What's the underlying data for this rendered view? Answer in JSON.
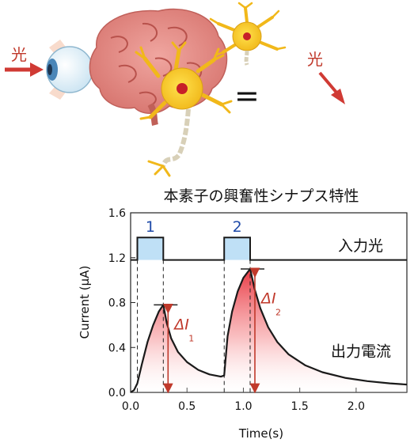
{
  "illustration": {
    "light_label_left": "光",
    "light_label_right": "光",
    "equals_sign": "=",
    "icons": [
      "light-arrow-icon",
      "eye-icon",
      "brain-icon",
      "neuron-icon"
    ]
  },
  "chart_data": {
    "type": "line",
    "title": "本素子の興奮性シナプス特性",
    "xlabel": "Time(s)",
    "ylabel": "Current (μA)",
    "xlim": [
      0,
      2.45
    ],
    "ylim": [
      0,
      1.6
    ],
    "xticks": [
      0.0,
      0.5,
      1.0,
      1.5,
      2.0
    ],
    "xtick_labels": [
      "0.0",
      "0.5",
      "1.0",
      "1.5",
      "2.0"
    ],
    "yticks": [
      0.0,
      0.4,
      0.8,
      1.2,
      1.6
    ],
    "ytick_labels": [
      "0.0",
      "0.4",
      "0.8",
      "1.2",
      "1.6"
    ],
    "grid": false,
    "pulse_labels": [
      "1",
      "2"
    ],
    "series": [
      {
        "name": "入力光",
        "x": [
          0,
          0.06,
          0.06,
          0.29,
          0.29,
          0.83,
          0.83,
          1.06,
          1.06,
          2.45
        ],
        "y": [
          1.18,
          1.18,
          1.38,
          1.38,
          1.18,
          1.18,
          1.38,
          1.38,
          1.18,
          1.18
        ]
      },
      {
        "name": "出力電流",
        "x": [
          0.0,
          0.03,
          0.06,
          0.1,
          0.15,
          0.2,
          0.25,
          0.29,
          0.32,
          0.36,
          0.42,
          0.5,
          0.6,
          0.7,
          0.8,
          0.83,
          0.86,
          0.9,
          0.95,
          1.0,
          1.06,
          1.1,
          1.15,
          1.22,
          1.3,
          1.4,
          1.55,
          1.7,
          1.9,
          2.1,
          2.3,
          2.45
        ],
        "y": [
          0.0,
          0.02,
          0.08,
          0.25,
          0.45,
          0.6,
          0.72,
          0.78,
          0.62,
          0.48,
          0.36,
          0.27,
          0.2,
          0.16,
          0.14,
          0.15,
          0.5,
          0.72,
          0.9,
          1.02,
          1.1,
          0.92,
          0.75,
          0.58,
          0.45,
          0.34,
          0.24,
          0.18,
          0.13,
          0.1,
          0.08,
          0.07
        ]
      }
    ],
    "annotations": [
      {
        "text": "ΔI",
        "subscript": "1",
        "x": 0.29,
        "y_top": 0.78,
        "y_bottom": 0.0
      },
      {
        "text": "ΔI",
        "subscript": "2",
        "x": 1.06,
        "y_top": 1.1,
        "y_bottom": 0.0
      }
    ],
    "colors": {
      "line": "#1a1a1a",
      "pulse_fill": "#bfe0f6",
      "pulse_label": "#1f4aa8",
      "annotation": "#c0392b",
      "gradient_top": "#e8303a"
    }
  }
}
